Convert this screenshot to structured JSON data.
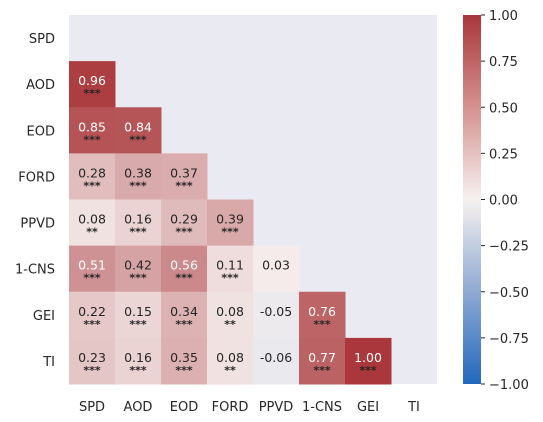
{
  "chart_data": {
    "type": "heatmap",
    "title": "",
    "xlabel": "",
    "ylabel": "",
    "variables": [
      "SPD",
      "AOD",
      "EOD",
      "FORD",
      "PPVD",
      "1-CNS",
      "GEI",
      "TI"
    ],
    "mask": "upper triangle including diagonal",
    "cells": [
      {
        "row": "AOD",
        "col": "SPD",
        "value": 0.96,
        "sig": "***"
      },
      {
        "row": "EOD",
        "col": "SPD",
        "value": 0.85,
        "sig": "***"
      },
      {
        "row": "EOD",
        "col": "AOD",
        "value": 0.84,
        "sig": "***"
      },
      {
        "row": "FORD",
        "col": "SPD",
        "value": 0.28,
        "sig": "***"
      },
      {
        "row": "FORD",
        "col": "AOD",
        "value": 0.38,
        "sig": "***"
      },
      {
        "row": "FORD",
        "col": "EOD",
        "value": 0.37,
        "sig": "***"
      },
      {
        "row": "PPVD",
        "col": "SPD",
        "value": 0.08,
        "sig": "**"
      },
      {
        "row": "PPVD",
        "col": "AOD",
        "value": 0.16,
        "sig": "***"
      },
      {
        "row": "PPVD",
        "col": "EOD",
        "value": 0.29,
        "sig": "***"
      },
      {
        "row": "PPVD",
        "col": "FORD",
        "value": 0.39,
        "sig": "***"
      },
      {
        "row": "1-CNS",
        "col": "SPD",
        "value": 0.51,
        "sig": "***"
      },
      {
        "row": "1-CNS",
        "col": "AOD",
        "value": 0.42,
        "sig": "***"
      },
      {
        "row": "1-CNS",
        "col": "EOD",
        "value": 0.56,
        "sig": "***"
      },
      {
        "row": "1-CNS",
        "col": "FORD",
        "value": 0.11,
        "sig": "***"
      },
      {
        "row": "1-CNS",
        "col": "PPVD",
        "value": 0.03,
        "sig": ""
      },
      {
        "row": "GEI",
        "col": "SPD",
        "value": 0.22,
        "sig": "***"
      },
      {
        "row": "GEI",
        "col": "AOD",
        "value": 0.15,
        "sig": "***"
      },
      {
        "row": "GEI",
        "col": "EOD",
        "value": 0.34,
        "sig": "***"
      },
      {
        "row": "GEI",
        "col": "FORD",
        "value": 0.08,
        "sig": "**"
      },
      {
        "row": "GEI",
        "col": "PPVD",
        "value": -0.05,
        "sig": ""
      },
      {
        "row": "GEI",
        "col": "1-CNS",
        "value": 0.76,
        "sig": "***"
      },
      {
        "row": "TI",
        "col": "SPD",
        "value": 0.23,
        "sig": "***"
      },
      {
        "row": "TI",
        "col": "AOD",
        "value": 0.16,
        "sig": "***"
      },
      {
        "row": "TI",
        "col": "EOD",
        "value": 0.35,
        "sig": "***"
      },
      {
        "row": "TI",
        "col": "FORD",
        "value": 0.08,
        "sig": "**"
      },
      {
        "row": "TI",
        "col": "PPVD",
        "value": -0.06,
        "sig": ""
      },
      {
        "row": "TI",
        "col": "1-CNS",
        "value": 0.77,
        "sig": "***"
      },
      {
        "row": "TI",
        "col": "GEI",
        "value": 1.0,
        "sig": "***"
      }
    ],
    "colorbar": {
      "range": [
        -1.0,
        1.0
      ],
      "colormap": "vlag (blue-white-red)",
      "ticks": [
        "1.00",
        "0.75",
        "0.50",
        "0.25",
        "0.00",
        "−0.25",
        "−0.50",
        "−0.75",
        "−1.00"
      ],
      "tick_values": [
        1.0,
        0.75,
        0.5,
        0.25,
        0.0,
        -0.25,
        -0.5,
        -0.75,
        -1.0
      ]
    },
    "colors": {
      "masked_background": "#eaeaf2",
      "negative_end": "#2369bd",
      "neutral": "#f7f1f0",
      "positive_end": "#a9373b"
    }
  }
}
